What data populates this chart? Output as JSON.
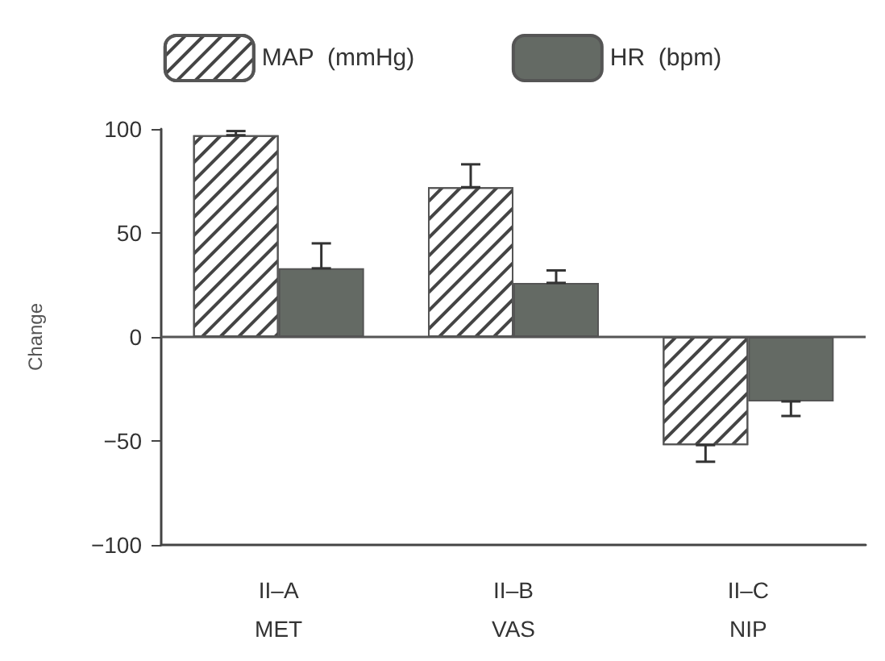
{
  "chart_data": {
    "type": "bar",
    "ylabel": "Change",
    "categories": [
      "II–A\nMET",
      "II–B\nVAS",
      "II–C\nNIP"
    ],
    "series": [
      {
        "name": "MAP  (mmHg)",
        "color": "#ffffff",
        "values": [
          97,
          72,
          -52
        ],
        "errors": [
          [
            97,
            99
          ],
          [
            72,
            83
          ],
          [
            -60,
            -52
          ]
        ]
      },
      {
        "name": "HR  (bpm)",
        "color": "#646a64",
        "values": [
          33,
          26,
          -31
        ],
        "errors": [
          [
            33,
            45
          ],
          [
            26,
            32
          ],
          [
            -38,
            -31
          ]
        ]
      }
    ],
    "ylim": [
      -100,
      100
    ],
    "yticks": [
      -100,
      -50,
      0,
      50,
      100
    ],
    "grid": false,
    "legend": "top",
    "ref_lines": [
      {
        "axis": "y",
        "value": 0
      }
    ]
  }
}
